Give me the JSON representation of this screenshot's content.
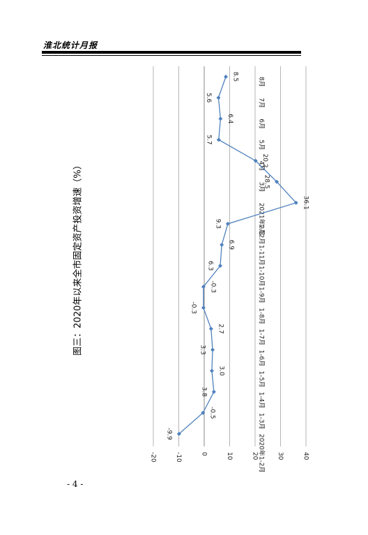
{
  "header": {
    "title": "淮北统计月报"
  },
  "page_number": "- 4 -",
  "chart_data": {
    "type": "line",
    "title": "图三：2020年以来全市固定资产投资增速（%）",
    "categories": [
      "2020年1-2月",
      "1-3月",
      "1-4月",
      "1-5月",
      "1-6月",
      "1-7月",
      "1-8月",
      "1-9月",
      "1-10月",
      "1-11月",
      "1-12月",
      "2021年2月",
      "3月",
      "4月",
      "5月",
      "6月",
      "7月",
      "8月"
    ],
    "values": [
      -9.9,
      -0.5,
      3.8,
      3.0,
      3.3,
      2.7,
      -0.3,
      -0.3,
      6.3,
      6.9,
      9.3,
      36.1,
      28.5,
      20.2,
      5.7,
      6.4,
      5.6,
      8.5
    ],
    "value_labels": [
      "-9.9",
      "-0.5",
      "3.8",
      "3.0",
      "3.3",
      "2.7",
      "-0.3",
      "-0.3",
      "6.3",
      "6.9",
      "9.3",
      "36.1",
      "28.5",
      "20.2",
      "5.7",
      "6.4",
      "5.6",
      "8.5"
    ],
    "ylim": [
      -20,
      40
    ],
    "yticks": [
      "-20",
      "-10",
      "0",
      "10",
      "20",
      "30",
      "40"
    ],
    "grid": true,
    "line_color": "#4f81bd"
  }
}
